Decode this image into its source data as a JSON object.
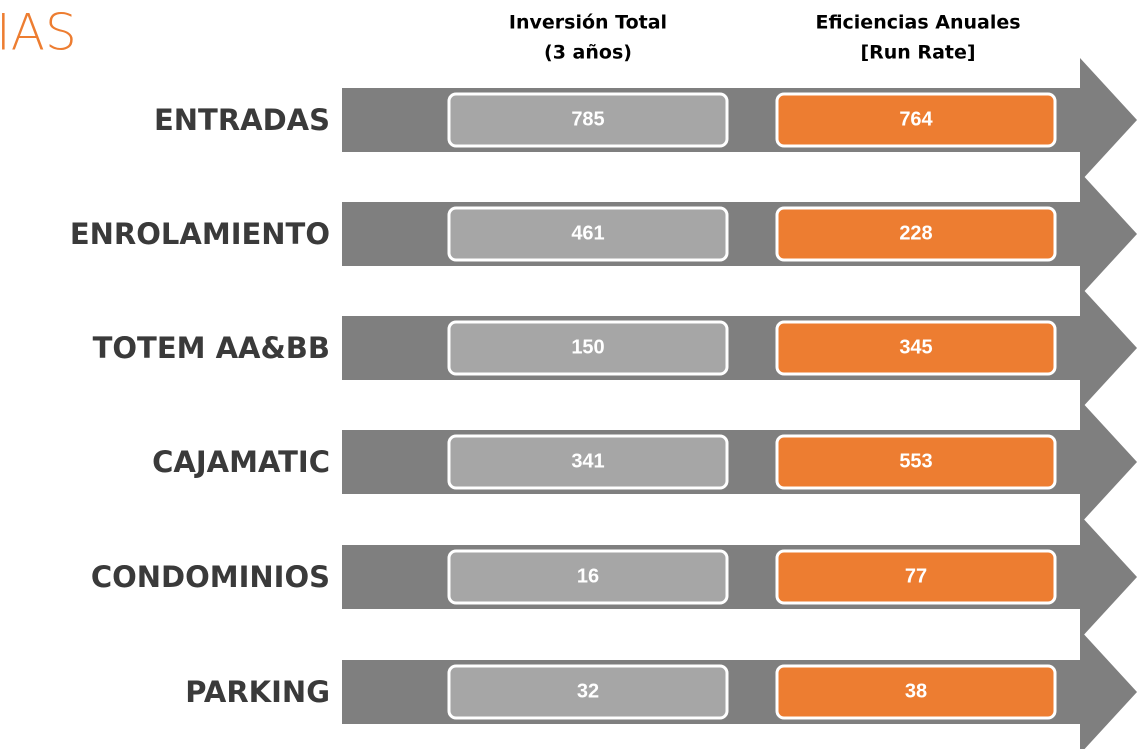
{
  "title": "IAS",
  "headers": [
    {
      "lines": [
        "Inversión Total",
        "(3 años)"
      ]
    },
    {
      "lines": [
        "Eficiencias Anuales",
        "[Run Rate]"
      ]
    }
  ],
  "rows": [
    {
      "label": "ENTRADAS",
      "investment": "785",
      "efficiency": "764"
    },
    {
      "label": "ENROLAMIENTO",
      "investment": "461",
      "efficiency": "228"
    },
    {
      "label": "TOTEM AA&BB",
      "investment": "150",
      "efficiency": "345"
    },
    {
      "label": "CAJAMATIC",
      "investment": "341",
      "efficiency": "553"
    },
    {
      "label": "CONDOMINIOS",
      "investment": "16",
      "efficiency": "77"
    },
    {
      "label": "PARKING",
      "investment": "32",
      "efficiency": "38"
    }
  ]
}
